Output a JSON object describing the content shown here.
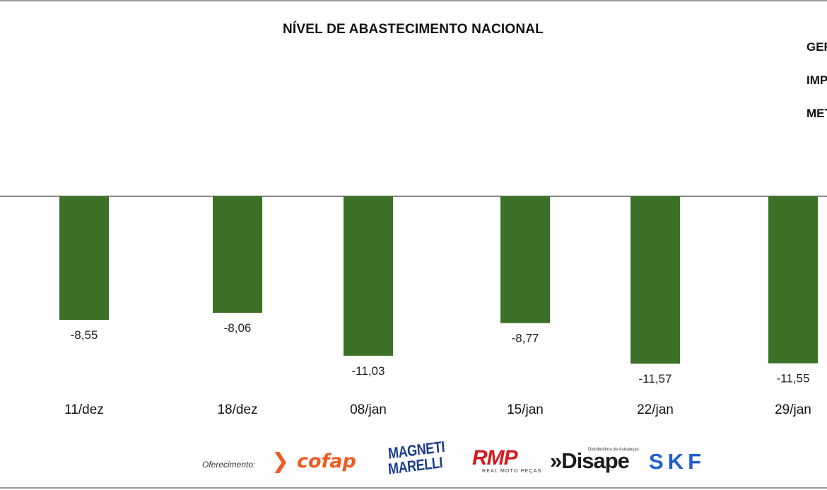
{
  "title": "NÍVEL DE ABASTECIMENTO NACIONAL",
  "legend": [
    "GER",
    "IMP",
    "MET"
  ],
  "colors": {
    "bar": "#3c7127",
    "axis": "#8a8a8a",
    "text": "#111111",
    "frame": "#9a9a9a"
  },
  "chart_data": {
    "type": "bar",
    "title": "NÍVEL DE ABASTECIMENTO NACIONAL",
    "categories": [
      "11/dez",
      "18/dez",
      "08/jan",
      "15/jan",
      "22/jan",
      "29/jan"
    ],
    "values": [
      -8.55,
      -8.06,
      -11.03,
      -8.77,
      -11.57,
      -11.55
    ],
    "data_labels": [
      "-8,55",
      "-8,06",
      "-11,03",
      "-8,77",
      "-11,57",
      "-11,55"
    ],
    "xlabel": "",
    "ylabel": "",
    "ylim": [
      -16.7,
      0
    ],
    "grid": false,
    "legend_position": "top-right"
  },
  "sponsor": {
    "label": "Oferecimento:",
    "logos": [
      {
        "name": "cofap",
        "mark": "❯",
        "text": "cofap"
      },
      {
        "name": "magneti-marelli",
        "line1": "MAGNETI",
        "line2": "MARELLI"
      },
      {
        "name": "rmp",
        "text": "RMP",
        "sub": "REAL MOTO PEÇAS"
      },
      {
        "name": "disape",
        "tag": "Distribuidora de Autopeças",
        "text": "»Disape"
      },
      {
        "name": "skf",
        "text": "SKF"
      }
    ]
  }
}
